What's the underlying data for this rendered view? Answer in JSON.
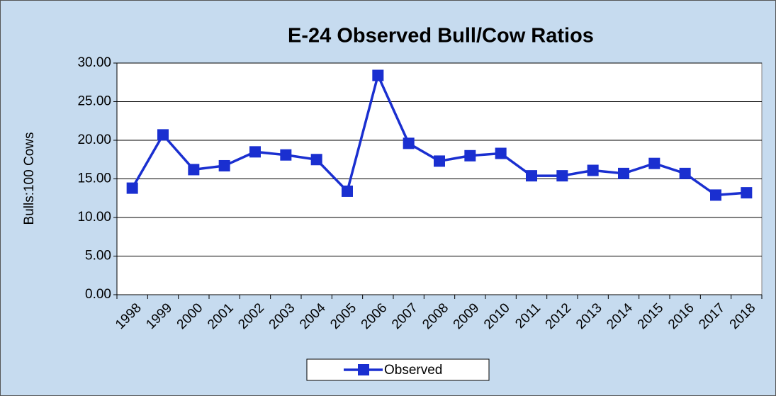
{
  "chart_data": {
    "type": "line",
    "title": "E-24 Observed Bull/Cow Ratios",
    "y_label": "Bulls:100 Cows",
    "categories": [
      "1998",
      "1999",
      "2000",
      "2001",
      "2002",
      "2003",
      "2004",
      "2005",
      "2006",
      "2007",
      "2008",
      "2009",
      "2010",
      "2011",
      "2012",
      "2013",
      "2014",
      "2015",
      "2016",
      "2017",
      "2018"
    ],
    "series": [
      {
        "name": "Observed",
        "color": "#1a2fd0",
        "values": [
          13.8,
          20.7,
          16.2,
          16.7,
          18.5,
          18.1,
          17.5,
          13.4,
          28.4,
          19.6,
          17.3,
          18.0,
          18.3,
          15.4,
          15.4,
          16.1,
          15.7,
          17.0,
          15.7,
          12.9,
          13.2
        ]
      }
    ],
    "ylim": [
      0,
      30
    ],
    "yticks": [
      {
        "value": 0,
        "label": "0.00"
      },
      {
        "value": 5,
        "label": "5.00"
      },
      {
        "value": 10,
        "label": "10.00"
      },
      {
        "value": 15,
        "label": "15.00"
      },
      {
        "value": 20,
        "label": "20.00"
      },
      {
        "value": 25,
        "label": "25.00"
      },
      {
        "value": 30,
        "label": "30.00"
      }
    ],
    "grid": true,
    "legend": "bottom"
  }
}
